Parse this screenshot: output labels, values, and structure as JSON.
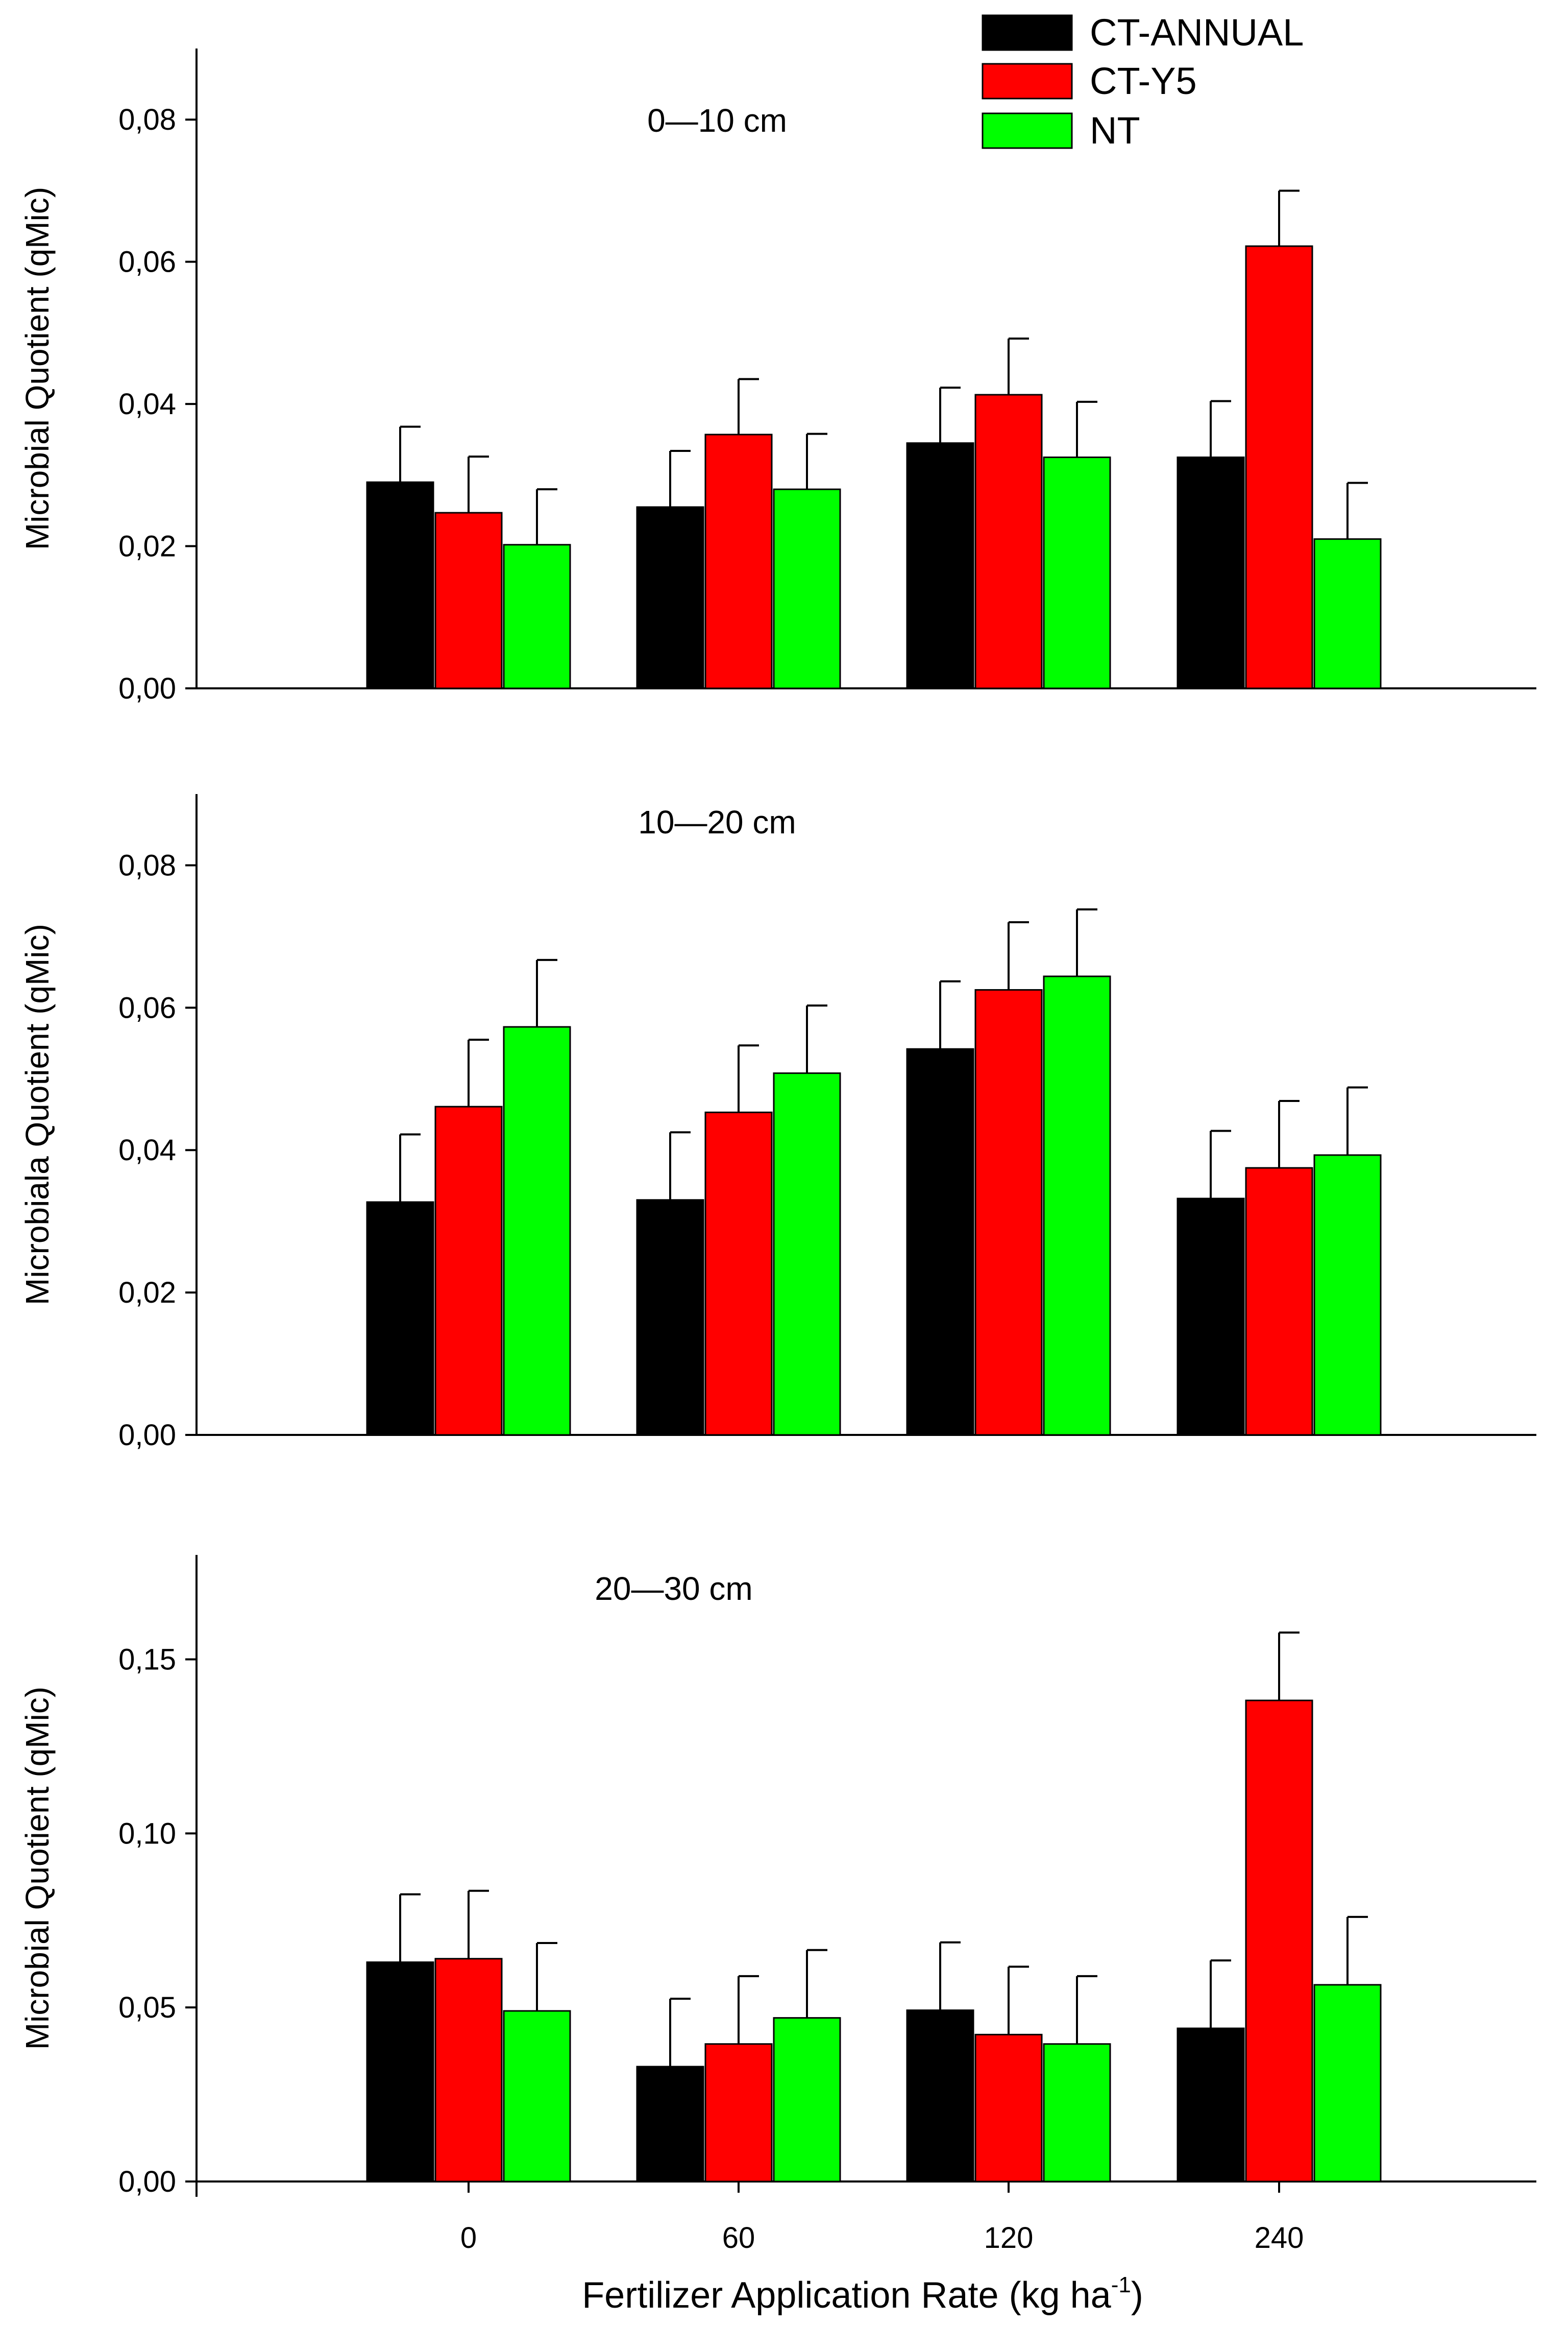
{
  "chart_data": [
    {
      "type": "bar",
      "panel_label": "0—10 cm",
      "ylabel": "Microbial Quotient (qMic)",
      "ylim": [
        0,
        0.09
      ],
      "yticks": [
        0,
        0.02,
        0.04,
        0.06,
        0.08
      ],
      "ytick_labels": [
        "0,00",
        "0,02",
        "0,04",
        "0,06",
        "0,08"
      ],
      "categories": [
        "0",
        "60",
        "120",
        "240"
      ],
      "series": [
        {
          "name": "CT-ANNUAL",
          "values": [
            0.029,
            0.0255,
            0.0345,
            0.0325
          ],
          "errors": [
            0.0078,
            0.0079,
            0.0078,
            0.0079
          ]
        },
        {
          "name": "CT-Y5",
          "values": [
            0.0247,
            0.0357,
            0.0413,
            0.0622
          ],
          "errors": [
            0.0079,
            0.0078,
            0.0079,
            0.0078
          ]
        },
        {
          "name": "NT",
          "values": [
            0.0202,
            0.028,
            0.0325,
            0.021
          ],
          "errors": [
            0.0078,
            0.0078,
            0.0078,
            0.0079
          ]
        }
      ]
    },
    {
      "type": "bar",
      "panel_label": "10—20 cm",
      "ylabel": "Microbiala Quotient (qMic)",
      "ylim": [
        0,
        0.09
      ],
      "yticks": [
        0,
        0.02,
        0.04,
        0.06,
        0.08
      ],
      "ytick_labels": [
        "0,00",
        "0,02",
        "0,04",
        "0,06",
        "0,08"
      ],
      "categories": [
        "0",
        "60",
        "120",
        "240"
      ],
      "series": [
        {
          "name": "CT-ANNUAL",
          "values": [
            0.0327,
            0.033,
            0.0542,
            0.0332
          ],
          "errors": [
            0.0095,
            0.0095,
            0.0095,
            0.0095
          ]
        },
        {
          "name": "CT-Y5",
          "values": [
            0.0461,
            0.0453,
            0.0625,
            0.0375
          ],
          "errors": [
            0.0094,
            0.0094,
            0.0095,
            0.0094
          ]
        },
        {
          "name": "NT",
          "values": [
            0.0573,
            0.0508,
            0.0644,
            0.0393
          ],
          "errors": [
            0.0094,
            0.0095,
            0.0094,
            0.0095
          ]
        }
      ]
    },
    {
      "type": "bar",
      "panel_label": "20—30 cm",
      "ylabel": "Microbial Quotient (qMic)",
      "ylim": [
        0,
        0.18
      ],
      "yticks": [
        0,
        0.05,
        0.1,
        0.15
      ],
      "ytick_labels": [
        "0,00",
        "0,05",
        "0,10",
        "0,15"
      ],
      "categories": [
        "0",
        "60",
        "120",
        "240"
      ],
      "series": [
        {
          "name": "CT-ANNUAL",
          "values": [
            0.063,
            0.033,
            0.0492,
            0.044
          ],
          "errors": [
            0.0195,
            0.0195,
            0.0195,
            0.0195
          ]
        },
        {
          "name": "CT-Y5",
          "values": [
            0.064,
            0.0395,
            0.0422,
            0.1382
          ],
          "errors": [
            0.0195,
            0.0195,
            0.0195,
            0.0195
          ]
        },
        {
          "name": "NT",
          "values": [
            0.049,
            0.047,
            0.0395,
            0.0565
          ],
          "errors": [
            0.0195,
            0.0195,
            0.0195,
            0.0195
          ]
        }
      ]
    }
  ],
  "legend": {
    "placement": "top-right",
    "items": [
      {
        "label": "CT-ANNUAL",
        "color": "#000000"
      },
      {
        "label": "CT-Y5",
        "color": "#ff0000"
      },
      {
        "label": "NT",
        "color": "#00ff00"
      }
    ]
  },
  "xaxis": {
    "label_main": "Fertilizer Application Rate (kg ha",
    "label_sup": "-1",
    "label_end": ")",
    "tick_labels": [
      "0",
      "60",
      "120",
      "240"
    ]
  }
}
